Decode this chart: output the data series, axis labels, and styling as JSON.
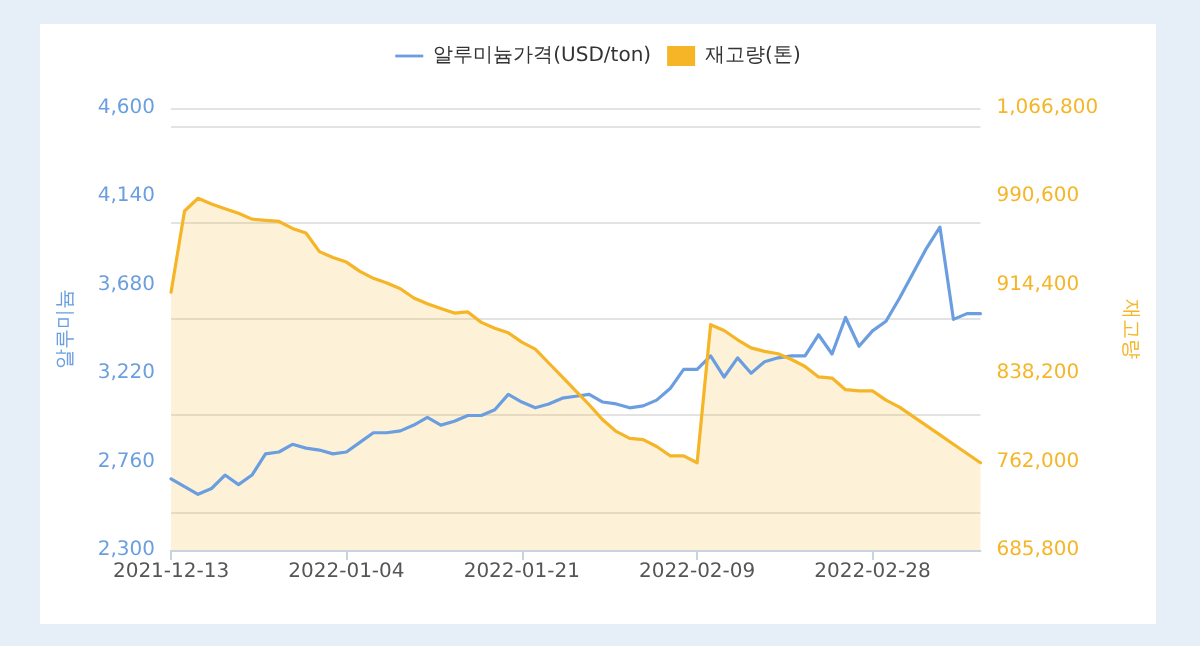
{
  "chart_data": {
    "type": "line",
    "ylabel": "알루미늄",
    "y2label": "재고량",
    "legend": "top",
    "grid": "y",
    "marker": "none",
    "categories": [
      "2021-12-13",
      null,
      null,
      null,
      null,
      null,
      null,
      null,
      null,
      null,
      null,
      null,
      null,
      "2022-01-04",
      null,
      null,
      null,
      null,
      null,
      null,
      null,
      null,
      null,
      null,
      null,
      null,
      "2022-01-21",
      null,
      null,
      null,
      null,
      null,
      null,
      null,
      null,
      null,
      null,
      null,
      null,
      "2022-02-09",
      null,
      null,
      null,
      null,
      null,
      null,
      null,
      null,
      null,
      null,
      null,
      null,
      "2022-02-28",
      null,
      null,
      null,
      null,
      null,
      null,
      null,
      null
    ],
    "ylim": [
      2300,
      4600
    ],
    "yticks": [
      {
        "value": 2300,
        "label": "2,300"
      },
      {
        "value": 2760,
        "label": "2,760"
      },
      {
        "value": 3220,
        "label": "3,220"
      },
      {
        "value": 3680,
        "label": "3,680"
      },
      {
        "value": 4140,
        "label": "4,140"
      },
      {
        "value": 4600,
        "label": "4,600"
      }
    ],
    "y2lim": [
      685800,
      1066800
    ],
    "y2ticks": [
      {
        "value": 685800,
        "label": "685,800"
      },
      {
        "value": 762000,
        "label": "762,000"
      },
      {
        "value": 838200,
        "label": "838,200"
      },
      {
        "value": 914400,
        "label": "914,400"
      },
      {
        "value": 990600,
        "label": "990,600"
      },
      {
        "value": 1066800,
        "label": "1,066,800"
      }
    ],
    "series": [
      {
        "name": "알루미늄가격(USD/ton)",
        "color": "#6a9ee0",
        "values": [
          2670,
          2630,
          2590,
          2620,
          2690,
          2640,
          2690,
          2800,
          2810,
          2850,
          2830,
          2820,
          2800,
          2810,
          2860,
          2910,
          2910,
          2920,
          2950,
          2990,
          2950,
          2970,
          3000,
          3000,
          3030,
          3110,
          3070,
          3040,
          3060,
          3090,
          3100,
          3110,
          3070,
          3060,
          3040,
          3050,
          3080,
          3140,
          3240,
          3240,
          3310,
          3200,
          3300,
          3220,
          3280,
          3300,
          3310,
          3310,
          3420,
          3320,
          3510,
          3360,
          3440,
          3490,
          3610,
          3740,
          3870,
          3980,
          3500,
          3530,
          3530
        ]
      },
      {
        "name": "재고량(톤)",
        "type": "area",
        "axis": "y2",
        "color": "#f5b526",
        "values": [
          908000,
          978000,
          989000,
          984000,
          980000,
          976000,
          971000,
          970000,
          969000,
          963000,
          959000,
          943000,
          938000,
          934000,
          926000,
          920000,
          916000,
          911000,
          903000,
          898000,
          894000,
          890000,
          891000,
          882000,
          877000,
          873000,
          865000,
          859000,
          847000,
          835000,
          823000,
          811000,
          798000,
          788000,
          782000,
          781000,
          775000,
          767000,
          767000,
          761000,
          880000,
          875000,
          867000,
          860000,
          857000,
          855000,
          850000,
          844000,
          835000,
          834000,
          824000,
          823000,
          823000,
          815000,
          809000,
          801000,
          793000,
          785000,
          777000,
          769000,
          761000
        ]
      }
    ]
  }
}
